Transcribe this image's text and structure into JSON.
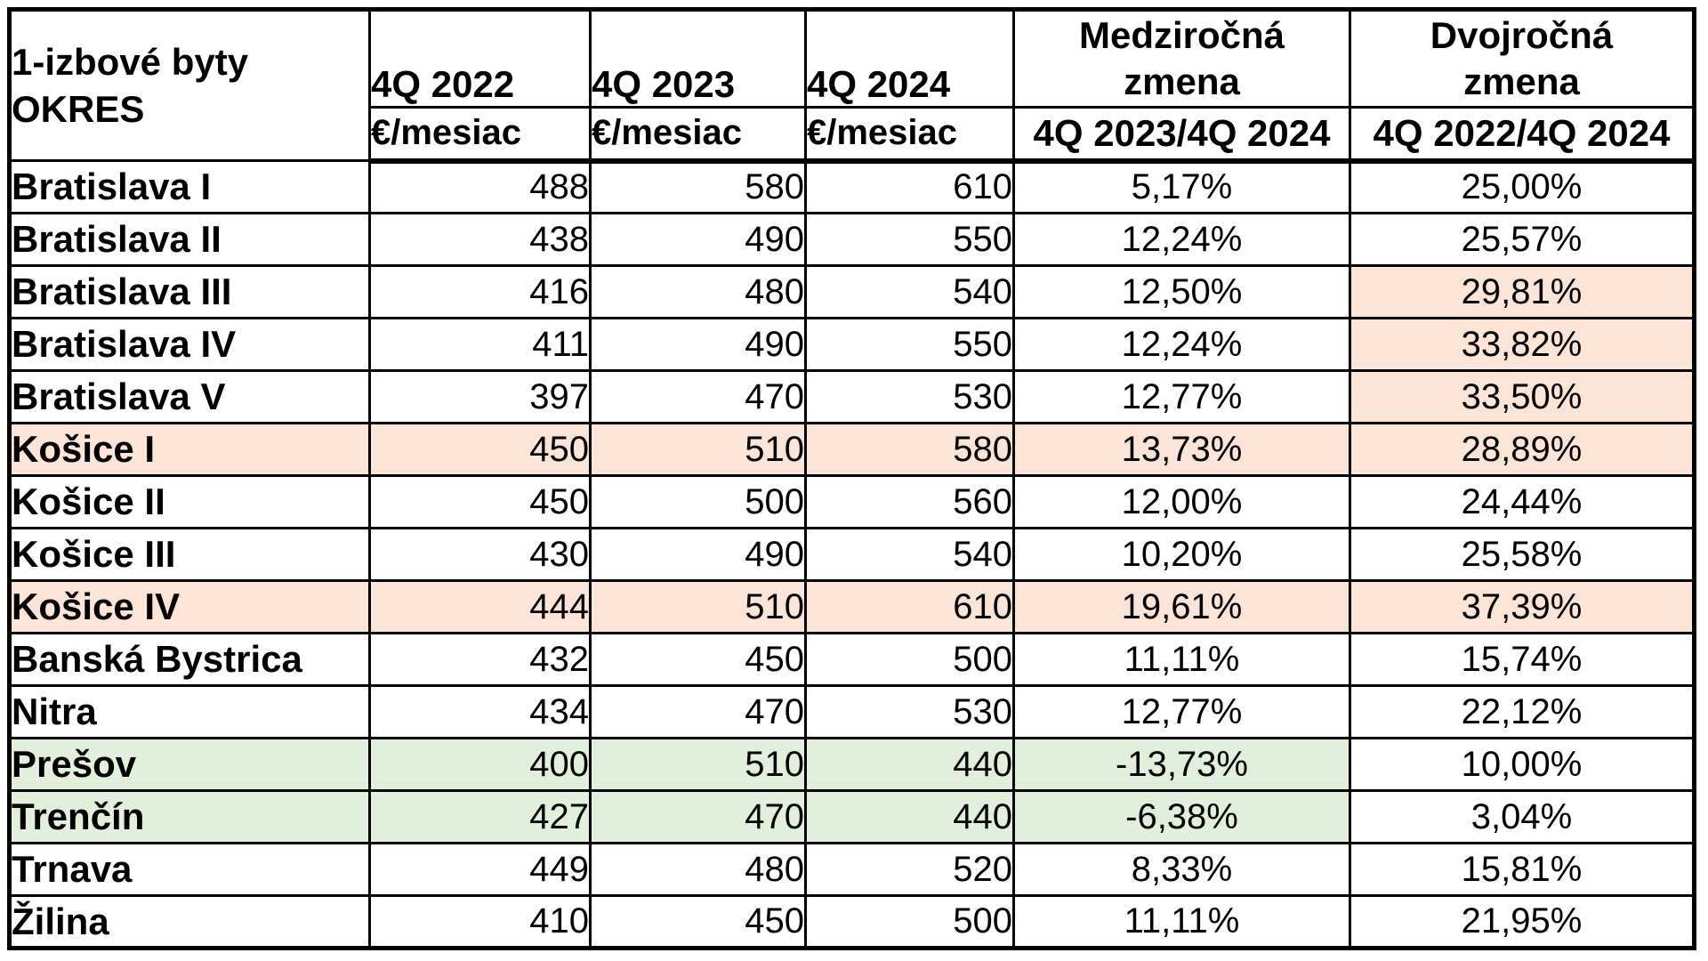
{
  "colors": {
    "background": "#ffffff",
    "border": "#000000",
    "text": "#000000",
    "highlight_peach": "#fce4d6",
    "highlight_green": "#e2efda"
  },
  "chart_data": {
    "type": "table",
    "title": "1-izbové byty OKRES",
    "corner": {
      "line1": "1-izbové byty",
      "line2": "OKRES"
    },
    "columns": [
      {
        "id": "q4_2022",
        "label": "4Q 2022",
        "sub": "€/mesiac"
      },
      {
        "id": "q4_2023",
        "label": "4Q 2023",
        "sub": "€/mesiac"
      },
      {
        "id": "q4_2024",
        "label": "4Q 2024",
        "sub": "€/mesiac"
      },
      {
        "id": "yoy",
        "label_line1": "Medziročná",
        "label_line2": "zmena",
        "sub": "4Q 2023/4Q 2024"
      },
      {
        "id": "two_year",
        "label_line1": "Dvojročná",
        "label_line2": "zmena",
        "sub": "4Q 2022/4Q 2024"
      }
    ],
    "rows": [
      {
        "district": "Bratislava I",
        "q4_2022": "488",
        "q4_2023": "580",
        "q4_2024": "610",
        "yoy": "5,17%",
        "two_year": "25,00%",
        "highlight": null,
        "highlight_cols": []
      },
      {
        "district": "Bratislava II",
        "q4_2022": "438",
        "q4_2023": "490",
        "q4_2024": "550",
        "yoy": "12,24%",
        "two_year": "25,57%",
        "highlight": null,
        "highlight_cols": []
      },
      {
        "district": "Bratislava III",
        "q4_2022": "416",
        "q4_2023": "480",
        "q4_2024": "540",
        "yoy": "12,50%",
        "two_year": "29,81%",
        "highlight": "peach",
        "highlight_cols": [
          "two_year"
        ]
      },
      {
        "district": "Bratislava IV",
        "q4_2022": "411",
        "q4_2023": "490",
        "q4_2024": "550",
        "yoy": "12,24%",
        "two_year": "33,82%",
        "highlight": "peach",
        "highlight_cols": [
          "two_year"
        ]
      },
      {
        "district": "Bratislava V",
        "q4_2022": "397",
        "q4_2023": "470",
        "q4_2024": "530",
        "yoy": "12,77%",
        "two_year": "33,50%",
        "highlight": "peach",
        "highlight_cols": [
          "two_year"
        ]
      },
      {
        "district": "Košice I",
        "q4_2022": "450",
        "q4_2023": "510",
        "q4_2024": "580",
        "yoy": "13,73%",
        "two_year": "28,89%",
        "highlight": "peach",
        "highlight_cols": [
          "district",
          "q4_2022",
          "q4_2023",
          "q4_2024",
          "yoy",
          "two_year"
        ]
      },
      {
        "district": "Košice II",
        "q4_2022": "450",
        "q4_2023": "500",
        "q4_2024": "560",
        "yoy": "12,00%",
        "two_year": "24,44%",
        "highlight": null,
        "highlight_cols": []
      },
      {
        "district": "Košice III",
        "q4_2022": "430",
        "q4_2023": "490",
        "q4_2024": "540",
        "yoy": "10,20%",
        "two_year": "25,58%",
        "highlight": null,
        "highlight_cols": []
      },
      {
        "district": "Košice IV",
        "q4_2022": "444",
        "q4_2023": "510",
        "q4_2024": "610",
        "yoy": "19,61%",
        "two_year": "37,39%",
        "highlight": "peach",
        "highlight_cols": [
          "district",
          "q4_2022",
          "q4_2023",
          "q4_2024",
          "yoy",
          "two_year"
        ]
      },
      {
        "district": "Banská Bystrica",
        "q4_2022": "432",
        "q4_2023": "450",
        "q4_2024": "500",
        "yoy": "11,11%",
        "two_year": "15,74%",
        "highlight": null,
        "highlight_cols": []
      },
      {
        "district": "Nitra",
        "q4_2022": "434",
        "q4_2023": "470",
        "q4_2024": "530",
        "yoy": "12,77%",
        "two_year": "22,12%",
        "highlight": null,
        "highlight_cols": []
      },
      {
        "district": "Prešov",
        "q4_2022": "400",
        "q4_2023": "510",
        "q4_2024": "440",
        "yoy": "-13,73%",
        "two_year": "10,00%",
        "highlight": "green",
        "highlight_cols": [
          "district",
          "q4_2022",
          "q4_2023",
          "q4_2024",
          "yoy"
        ]
      },
      {
        "district": "Trenčín",
        "q4_2022": "427",
        "q4_2023": "470",
        "q4_2024": "440",
        "yoy": "-6,38%",
        "two_year": "3,04%",
        "highlight": "green",
        "highlight_cols": [
          "district",
          "q4_2022",
          "q4_2023",
          "q4_2024",
          "yoy"
        ]
      },
      {
        "district": "Trnava",
        "q4_2022": "449",
        "q4_2023": "480",
        "q4_2024": "520",
        "yoy": "8,33%",
        "two_year": "15,81%",
        "highlight": null,
        "highlight_cols": []
      },
      {
        "district": "Žilina",
        "q4_2022": "410",
        "q4_2023": "450",
        "q4_2024": "500",
        "yoy": "11,11%",
        "two_year": "21,95%",
        "highlight": null,
        "highlight_cols": []
      }
    ]
  }
}
